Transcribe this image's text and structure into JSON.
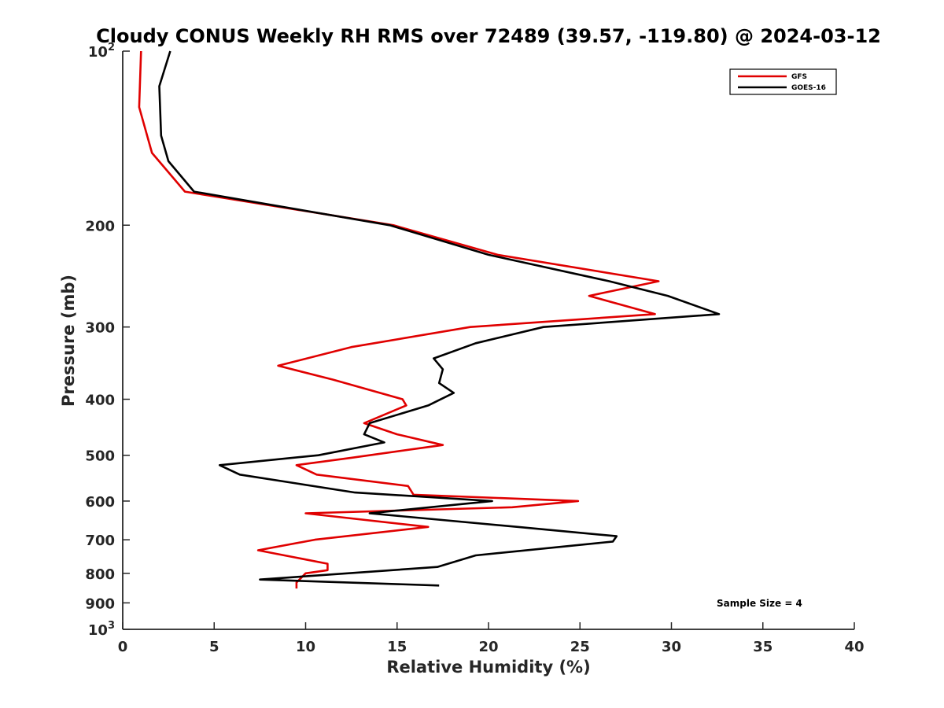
{
  "chart_data": {
    "type": "line",
    "title": "Cloudy CONUS Weekly RH RMS over 72489 (39.57, -119.80) @ 2024-03-12",
    "xlabel": "Relative Humidity (%)",
    "ylabel": "Pressure (mb)",
    "xlim": [
      0,
      40
    ],
    "ylim": [
      100,
      1000
    ],
    "y_scale": "log",
    "y_reversed": true,
    "grid": false,
    "legend_position": "top-right",
    "x_ticks": [
      "0",
      "5",
      "10",
      "15",
      "20",
      "25",
      "30",
      "35",
      "40"
    ],
    "x_tick_values": [
      0,
      5,
      10,
      15,
      20,
      25,
      30,
      35,
      40
    ],
    "y_ticks": [
      {
        "value": 100,
        "base": "10",
        "exp": "2"
      },
      {
        "value": 200,
        "base": "200",
        "exp": ""
      },
      {
        "value": 300,
        "base": "300",
        "exp": ""
      },
      {
        "value": 400,
        "base": "400",
        "exp": ""
      },
      {
        "value": 500,
        "base": "500",
        "exp": ""
      },
      {
        "value": 600,
        "base": "600",
        "exp": ""
      },
      {
        "value": 700,
        "base": "700",
        "exp": ""
      },
      {
        "value": 800,
        "base": "800",
        "exp": ""
      },
      {
        "value": 900,
        "base": "900",
        "exp": ""
      },
      {
        "value": 1000,
        "base": "10",
        "exp": "3"
      }
    ],
    "annotation": "Sample Size = 4",
    "series": [
      {
        "name": "GFS",
        "color": "#e00000",
        "points": [
          [
            1.0,
            100
          ],
          [
            0.9,
            125
          ],
          [
            1.6,
            150
          ],
          [
            3.4,
            175
          ],
          [
            14.8,
            200
          ],
          [
            20.5,
            225
          ],
          [
            29.3,
            250
          ],
          [
            25.5,
            265
          ],
          [
            29.1,
            285
          ],
          [
            19.0,
            300
          ],
          [
            12.5,
            325
          ],
          [
            8.5,
            350
          ],
          [
            11.5,
            370
          ],
          [
            15.3,
            400
          ],
          [
            15.5,
            410
          ],
          [
            13.2,
            440
          ],
          [
            15.0,
            460
          ],
          [
            17.5,
            480
          ],
          [
            12.5,
            505
          ],
          [
            9.5,
            520
          ],
          [
            10.6,
            540
          ],
          [
            15.6,
            565
          ],
          [
            15.9,
            585
          ],
          [
            24.9,
            600
          ],
          [
            21.3,
            615
          ],
          [
            10.0,
            630
          ],
          [
            16.7,
            665
          ],
          [
            10.5,
            700
          ],
          [
            7.4,
            730
          ],
          [
            11.2,
            770
          ],
          [
            11.2,
            790
          ],
          [
            10.0,
            800
          ],
          [
            9.5,
            830
          ],
          [
            9.5,
            850
          ]
        ]
      },
      {
        "name": "GOES-16",
        "color": "#000000",
        "points": [
          [
            2.6,
            100
          ],
          [
            2.0,
            115
          ],
          [
            2.1,
            140
          ],
          [
            2.5,
            155
          ],
          [
            3.9,
            175
          ],
          [
            14.6,
            200
          ],
          [
            20.0,
            225
          ],
          [
            26.6,
            250
          ],
          [
            29.8,
            265
          ],
          [
            32.6,
            285
          ],
          [
            23.0,
            300
          ],
          [
            19.3,
            320
          ],
          [
            17.0,
            340
          ],
          [
            17.5,
            355
          ],
          [
            17.3,
            375
          ],
          [
            18.1,
            390
          ],
          [
            16.7,
            410
          ],
          [
            13.5,
            440
          ],
          [
            13.2,
            460
          ],
          [
            14.3,
            475
          ],
          [
            10.7,
            500
          ],
          [
            5.3,
            520
          ],
          [
            6.4,
            540
          ],
          [
            9.6,
            560
          ],
          [
            12.7,
            580
          ],
          [
            20.2,
            600
          ],
          [
            13.5,
            630
          ],
          [
            21.6,
            665
          ],
          [
            27.0,
            690
          ],
          [
            26.8,
            705
          ],
          [
            19.3,
            745
          ],
          [
            17.2,
            780
          ],
          [
            7.5,
            820
          ],
          [
            17.3,
            840
          ]
        ]
      }
    ]
  }
}
